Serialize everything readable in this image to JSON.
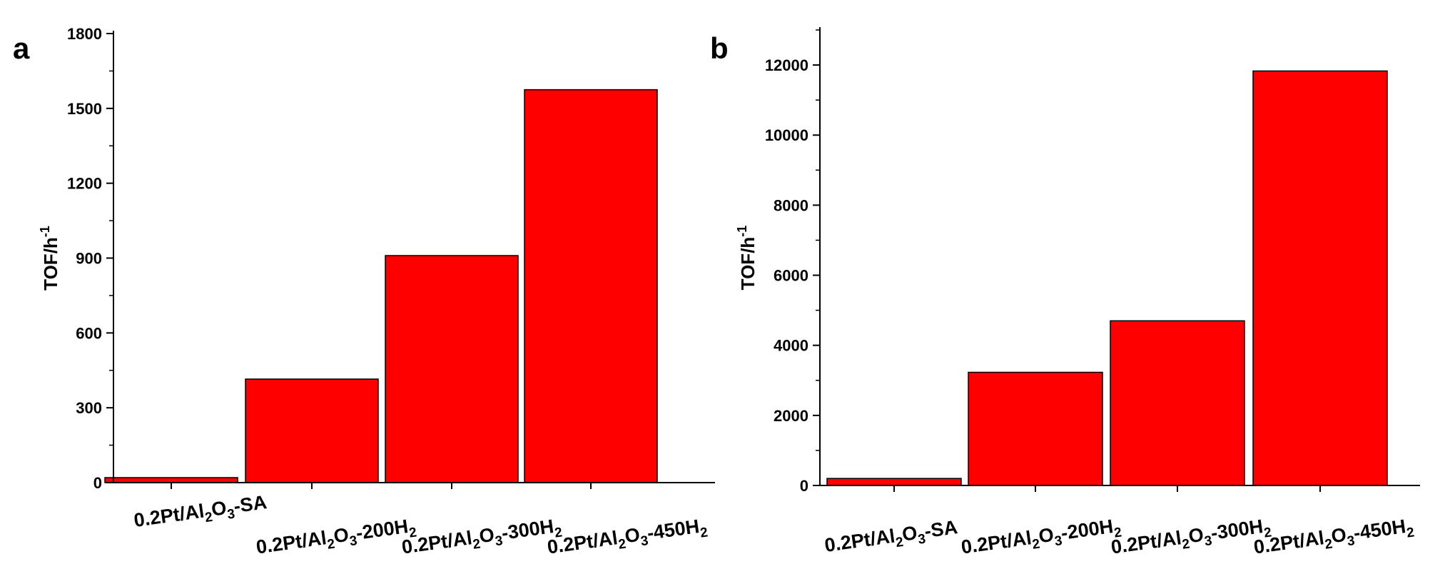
{
  "chart_data": [
    {
      "type": "bar",
      "panel_label": "a",
      "categories": [
        "0.2Pt/Al2O3-SA",
        "0.2Pt/Al2O3-200H2",
        "0.2Pt/Al2O3-300H2",
        "0.2Pt/Al2O3-450H2"
      ],
      "category_labels": [
        [
          {
            "t": "0.2Pt/Al"
          },
          {
            "t": "2",
            "sub": true
          },
          {
            "t": "O"
          },
          {
            "t": "3",
            "sub": true
          },
          {
            "t": "-SA"
          }
        ],
        [
          {
            "t": "0.2Pt/Al"
          },
          {
            "t": "2",
            "sub": true
          },
          {
            "t": "O"
          },
          {
            "t": "3",
            "sub": true
          },
          {
            "t": "-200H"
          },
          {
            "t": "2",
            "sub": true
          }
        ],
        [
          {
            "t": "0.2Pt/Al"
          },
          {
            "t": "2",
            "sub": true
          },
          {
            "t": "O"
          },
          {
            "t": "3",
            "sub": true
          },
          {
            "t": "-300H"
          },
          {
            "t": "2",
            "sub": true
          }
        ],
        [
          {
            "t": "0.2Pt/Al"
          },
          {
            "t": "2",
            "sub": true
          },
          {
            "t": "O"
          },
          {
            "t": "3",
            "sub": true
          },
          {
            "t": "-450H"
          },
          {
            "t": "2",
            "sub": true
          }
        ]
      ],
      "values": [
        20,
        415,
        910,
        1575
      ],
      "ylabel": "TOF/h",
      "ylabel_sup": "-1",
      "ylim": [
        0,
        1800
      ],
      "yticks": [
        0,
        300,
        600,
        900,
        1200,
        1500,
        1800
      ],
      "color": "#ff0000",
      "grid": false
    },
    {
      "type": "bar",
      "panel_label": "b",
      "categories": [
        "0.2Pt/Al2O3-SA",
        "0.2Pt/Al2O3-200H2",
        "0.2Pt/Al2O3-300H2",
        "0.2Pt/Al2O3-450H2"
      ],
      "category_labels": [
        [
          {
            "t": "0.2Pt/Al"
          },
          {
            "t": "2",
            "sub": true
          },
          {
            "t": "O"
          },
          {
            "t": "3",
            "sub": true
          },
          {
            "t": "-SA"
          }
        ],
        [
          {
            "t": "0.2Pt/Al"
          },
          {
            "t": "2",
            "sub": true
          },
          {
            "t": "O"
          },
          {
            "t": "3",
            "sub": true
          },
          {
            "t": "-200H"
          },
          {
            "t": "2",
            "sub": true
          }
        ],
        [
          {
            "t": "0.2Pt/Al"
          },
          {
            "t": "2",
            "sub": true
          },
          {
            "t": "O"
          },
          {
            "t": "3",
            "sub": true
          },
          {
            "t": "-300H"
          },
          {
            "t": "2",
            "sub": true
          }
        ],
        [
          {
            "t": "0.2Pt/Al"
          },
          {
            "t": "2",
            "sub": true
          },
          {
            "t": "O"
          },
          {
            "t": "3",
            "sub": true
          },
          {
            "t": "-450H"
          },
          {
            "t": "2",
            "sub": true
          }
        ]
      ],
      "values": [
        200,
        3230,
        4700,
        11830
      ],
      "ylabel": "TOF/h",
      "ylabel_sup": "-1",
      "ylim": [
        0,
        13000
      ],
      "yticks": [
        0,
        2000,
        4000,
        6000,
        8000,
        10000,
        12000
      ],
      "color": "#ff0000",
      "grid": false
    }
  ]
}
